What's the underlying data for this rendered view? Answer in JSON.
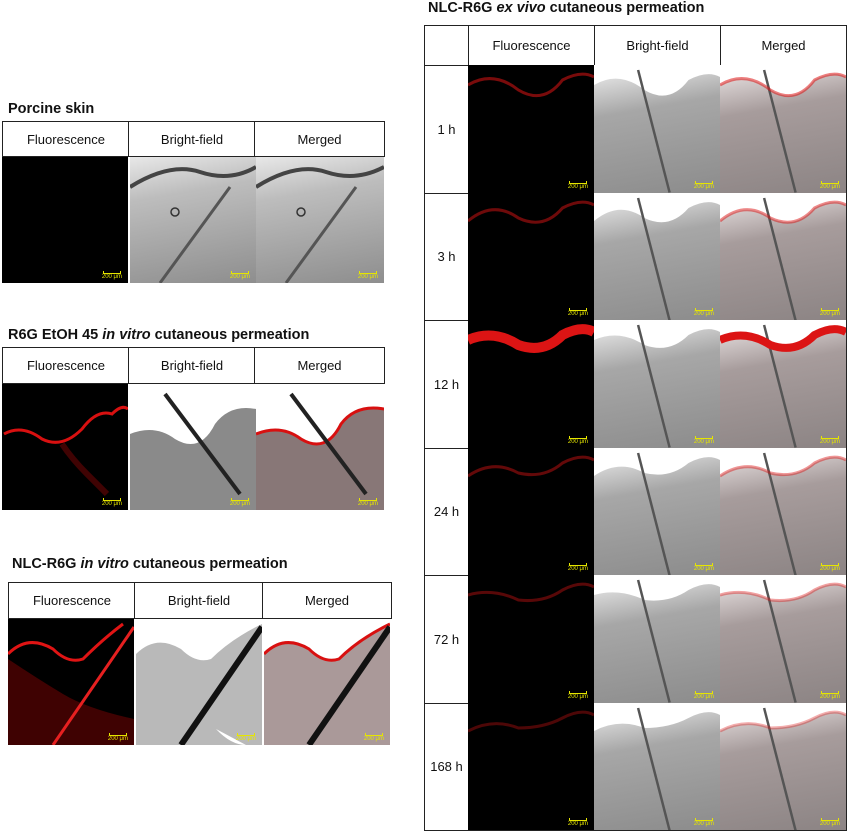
{
  "panels": {
    "porcine": {
      "title": "Porcine skin",
      "headers": [
        "Fluorescence",
        "Bright-field",
        "Merged"
      ],
      "scale_label": "200 μm"
    },
    "r6g_etoh": {
      "title_prefix": "R6G EtOH 45 ",
      "title_italic": "in vitro",
      "title_suffix": " cutaneous permeation",
      "headers": [
        "Fluorescence",
        "Bright-field",
        "Merged"
      ],
      "scale_label": "200 μm"
    },
    "nlc_invitro": {
      "title_prefix": "NLC-R6G ",
      "title_italic": "in vitro",
      "title_suffix": " cutaneous permeation",
      "headers": [
        "Fluorescence",
        "Bright-field",
        "Merged"
      ],
      "scale_label": "200 μm"
    },
    "nlc_exvivo": {
      "title_prefix": "NLC-R6G ",
      "title_italic": "ex vivo",
      "title_suffix": " cutaneous permeation",
      "headers": [
        "Fluorescence",
        "Bright-field",
        "Merged"
      ],
      "rows": [
        "1 h",
        "3 h",
        "12 h",
        "24 h",
        "72 h",
        "168 h"
      ],
      "scale_label": "200 μm"
    }
  }
}
